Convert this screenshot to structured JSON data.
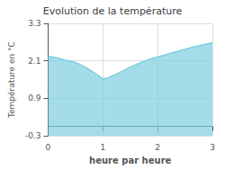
{
  "chart_data": {
    "type": "area",
    "title": "Evolution de la température",
    "xlabel": "heure par heure",
    "ylabel": "Température en °C",
    "x": [
      0,
      0.15,
      0.3,
      0.5,
      0.7,
      0.9,
      1.0,
      1.1,
      1.3,
      1.5,
      1.7,
      1.9,
      2.0,
      2.2,
      2.4,
      2.6,
      2.8,
      3.0
    ],
    "values": [
      2.25,
      2.2,
      2.13,
      2.05,
      1.88,
      1.65,
      1.52,
      1.56,
      1.72,
      1.9,
      2.05,
      2.18,
      2.22,
      2.32,
      2.42,
      2.52,
      2.6,
      2.68
    ],
    "color": "#7ecfe0",
    "xlim": [
      0,
      3
    ],
    "ylim": [
      -0.3,
      3.3
    ],
    "xticks": [
      0,
      1,
      2,
      3
    ],
    "yticks": [
      -0.3,
      0.9,
      2.1,
      3.3
    ],
    "grid": true
  }
}
